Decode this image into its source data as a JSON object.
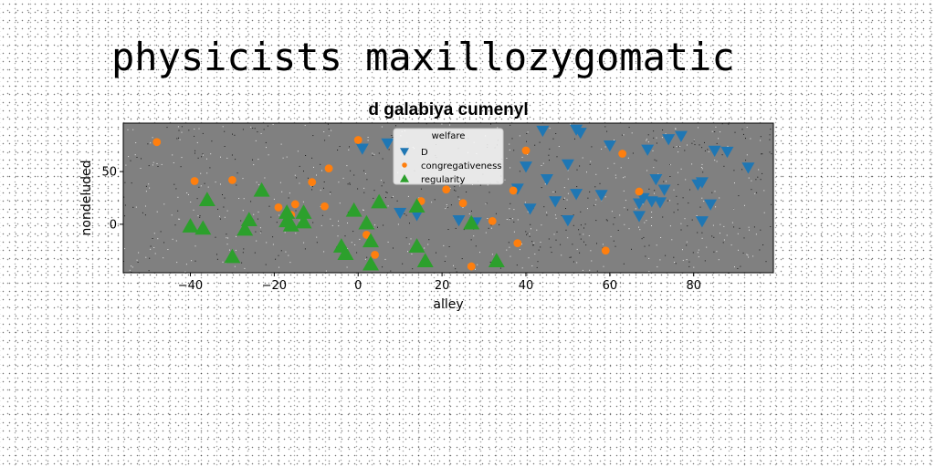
{
  "page": {
    "heading": "physicists maxillozygomatic"
  },
  "chart_data": {
    "type": "scatter",
    "title": "d galabiya cumenyl",
    "xlabel": "alley",
    "ylabel": "nondeluded",
    "xlim": [
      -56,
      99
    ],
    "ylim": [
      -46,
      96
    ],
    "xticks": [
      -40,
      -20,
      0,
      20,
      40,
      60,
      80
    ],
    "yticks": [
      0,
      50
    ],
    "grid": false,
    "background": "#808080",
    "legend": {
      "placement": "top-center",
      "title": "welfare"
    },
    "series": [
      {
        "name": "D",
        "marker": "triangle-down",
        "color": "#1f77b4",
        "points": [
          [
            1,
            72
          ],
          [
            7,
            77
          ],
          [
            10,
            11
          ],
          [
            14,
            9
          ],
          [
            24,
            4
          ],
          [
            28,
            2
          ],
          [
            38,
            34
          ],
          [
            40,
            55
          ],
          [
            41,
            15
          ],
          [
            44,
            89
          ],
          [
            45,
            43
          ],
          [
            47,
            22
          ],
          [
            50,
            57
          ],
          [
            50,
            4
          ],
          [
            52,
            90
          ],
          [
            52,
            29
          ],
          [
            53,
            87
          ],
          [
            58,
            28
          ],
          [
            60,
            75
          ],
          [
            67,
            20
          ],
          [
            67,
            8
          ],
          [
            68,
            25
          ],
          [
            69,
            71
          ],
          [
            70,
            22
          ],
          [
            71,
            43
          ],
          [
            72,
            21
          ],
          [
            73,
            33
          ],
          [
            74,
            81
          ],
          [
            77,
            84
          ],
          [
            81,
            38
          ],
          [
            82,
            40
          ],
          [
            82,
            3
          ],
          [
            84,
            19
          ],
          [
            85,
            70
          ],
          [
            88,
            69
          ],
          [
            93,
            54
          ]
        ]
      },
      {
        "name": "congregativeness",
        "marker": "circle",
        "color": "#ff7f0e",
        "points": [
          [
            -48,
            78
          ],
          [
            -39,
            41
          ],
          [
            -30,
            42
          ],
          [
            -19,
            16
          ],
          [
            -16,
            9
          ],
          [
            -15,
            19
          ],
          [
            -11,
            40
          ],
          [
            -8,
            17
          ],
          [
            -7,
            53
          ],
          [
            0,
            80
          ],
          [
            2,
            -10
          ],
          [
            4,
            -29
          ],
          [
            15,
            22
          ],
          [
            21,
            33
          ],
          [
            25,
            20
          ],
          [
            27,
            -40
          ],
          [
            32,
            3
          ],
          [
            37,
            32
          ],
          [
            38,
            -18
          ],
          [
            40,
            70
          ],
          [
            59,
            -25
          ],
          [
            63,
            67
          ],
          [
            67,
            31
          ]
        ]
      },
      {
        "name": "regularity",
        "marker": "triangle-up",
        "color": "#2ca02c",
        "points": [
          [
            -40,
            -2
          ],
          [
            -37,
            -4
          ],
          [
            -36,
            23
          ],
          [
            -30,
            -31
          ],
          [
            -27,
            -5
          ],
          [
            -26,
            4
          ],
          [
            -23,
            32
          ],
          [
            -17,
            3
          ],
          [
            -17,
            11
          ],
          [
            -16,
            -1
          ],
          [
            -13,
            11
          ],
          [
            -13,
            2
          ],
          [
            -4,
            -21
          ],
          [
            -3,
            -28
          ],
          [
            -1,
            13
          ],
          [
            2,
            1
          ],
          [
            3,
            -16
          ],
          [
            3,
            -38
          ],
          [
            5,
            21
          ],
          [
            14,
            -21
          ],
          [
            14,
            17
          ],
          [
            16,
            -35
          ],
          [
            27,
            1
          ],
          [
            33,
            -35
          ]
        ]
      }
    ]
  }
}
